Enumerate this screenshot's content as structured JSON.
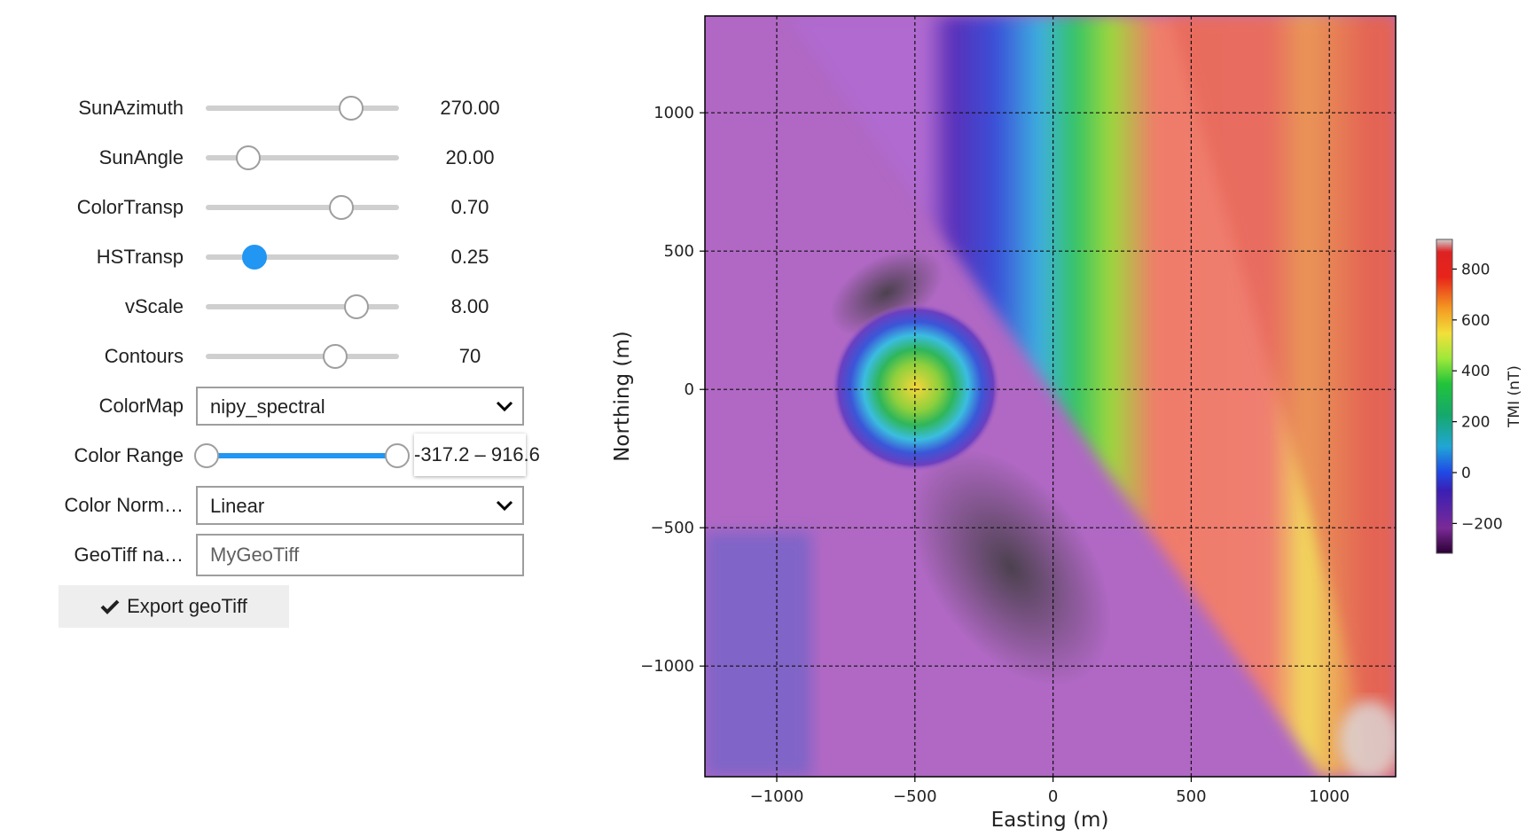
{
  "controls": {
    "sliders": [
      {
        "label": "SunAzimuth",
        "value": "270.00",
        "fraction": 0.75
      },
      {
        "label": "SunAngle",
        "value": "20.00",
        "fraction": 0.22
      },
      {
        "label": "ColorTransp",
        "value": "0.70",
        "fraction": 0.7
      },
      {
        "label": "HSTransp",
        "value": "0.25",
        "fraction": 0.25
      },
      {
        "label": "vScale",
        "value": "8.00",
        "fraction": 0.78
      },
      {
        "label": "Contours",
        "value": "70",
        "fraction": 0.67
      }
    ],
    "colormap": {
      "label": "ColorMap",
      "value": "nipy_spectral"
    },
    "color_range": {
      "label": "Color Range",
      "value": "-317.2 – 916.6",
      "low_fraction": 0.0,
      "high_fraction": 1.0
    },
    "color_norm": {
      "label": "Color Norm…",
      "value": "Linear"
    },
    "geotiff": {
      "label": "GeoTiff na…",
      "value": "MyGeoTiff"
    },
    "export_button": "Export geoTiff"
  },
  "chart_data": {
    "type": "heatmap",
    "xlabel": "Easting (m)",
    "ylabel": "Northing (m)",
    "xlim": [
      -1260,
      1240
    ],
    "ylim": [
      -1400,
      1350
    ],
    "xticks": [
      -1000,
      -500,
      0,
      500,
      1000
    ],
    "xtick_labels": [
      "−1000",
      "−500",
      "0",
      "500",
      "1000"
    ],
    "yticks": [
      -1000,
      -500,
      0,
      500,
      1000
    ],
    "ytick_labels": [
      "−1000",
      "−500",
      "0",
      "500",
      "1000"
    ],
    "grid": true,
    "colorbar": {
      "label": "TMI (nT)",
      "range": [
        -317.2,
        916.6
      ],
      "ticks": [
        -200,
        0,
        200,
        400,
        600,
        800
      ],
      "tick_labels": [
        "−200",
        "0",
        "200",
        "400",
        "600",
        "800"
      ],
      "colormap": "nipy_spectral"
    },
    "features": [
      {
        "kind": "linear-anomaly",
        "description_free": true
      },
      {
        "kind": "circular-anomaly",
        "center": [
          -500,
          0
        ]
      }
    ]
  }
}
